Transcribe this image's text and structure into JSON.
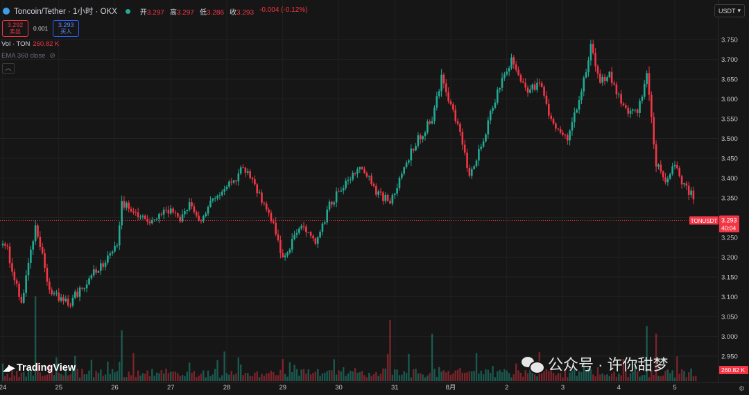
{
  "header": {
    "symbol_title": "Toncoin/Tether · 1小时 · OKX",
    "ohlc": [
      {
        "key": "开",
        "value": "3.297"
      },
      {
        "key": "高",
        "value": "3.297"
      },
      {
        "key": "低",
        "value": "3.286"
      },
      {
        "key": "收",
        "value": "3.293"
      }
    ],
    "change": "-0.004 (-0.12%)",
    "down_color": "#f23645",
    "up_color": "#22ab94"
  },
  "trade": {
    "sell_price": "3.292",
    "sell_label": "卖出",
    "spread": "0.001",
    "buy_price": "3.293",
    "buy_label": "买入"
  },
  "indicators": {
    "volume_label": "Vol · TON",
    "volume_value": "260.82 K",
    "ema_label": "EMA 360 close"
  },
  "currency_selector": {
    "label": "USDT"
  },
  "price_tag": {
    "symbol": "TONUSDT",
    "price": "3.293",
    "countdown": "40:04"
  },
  "volume_tag": "260.82 K",
  "branding": {
    "tradingview": "TradingView",
    "watermark": "公众号 · 许你甜梦"
  },
  "chart_data": {
    "type": "candlestick",
    "title": "Toncoin/Tether · 1小时 · OKX",
    "interval": "1h",
    "ylim": [
      2.95,
      3.775
    ],
    "y_ticks": [
      "2.950",
      "3.000",
      "3.050",
      "3.100",
      "3.150",
      "3.200",
      "3.250",
      "3.300",
      "3.350",
      "3.400",
      "3.450",
      "3.500",
      "3.550",
      "3.600",
      "3.650",
      "3.700",
      "3.750"
    ],
    "x_ticks": [
      "24",
      "25",
      "26",
      "27",
      "28",
      "29",
      "30",
      "31",
      "8月",
      "2",
      "3",
      "4",
      "5"
    ],
    "last_price": 3.293,
    "volume_unit": "K",
    "volume_max": 1000,
    "anchors": [
      {
        "t": "24 00:00",
        "price": 3.23
      },
      {
        "t": "24 01:00",
        "price": 3.24
      },
      {
        "t": "24 08:00",
        "price": 3.08
      },
      {
        "t": "24 14:00",
        "price": 3.28
      },
      {
        "t": "24 20:00",
        "price": 3.12
      },
      {
        "t": "25 04:00",
        "price": 3.08
      },
      {
        "t": "25 12:00",
        "price": 3.14
      },
      {
        "t": "25 20:00",
        "price": 3.19
      },
      {
        "t": "26 01:00",
        "price": 3.23
      },
      {
        "t": "26 03:00",
        "price": 3.34
      },
      {
        "t": "26 08:00",
        "price": 3.31
      },
      {
        "t": "26 14:00",
        "price": 3.29
      },
      {
        "t": "26 22:00",
        "price": 3.32
      },
      {
        "t": "27 04:00",
        "price": 3.3
      },
      {
        "t": "27 08:00",
        "price": 3.34
      },
      {
        "t": "27 12:00",
        "price": 3.29
      },
      {
        "t": "27 18:00",
        "price": 3.35
      },
      {
        "t": "28 04:00",
        "price": 3.4
      },
      {
        "t": "28 06:00",
        "price": 3.43
      },
      {
        "t": "28 10:00",
        "price": 3.41
      },
      {
        "t": "28 20:00",
        "price": 3.28
      },
      {
        "t": "29 00:00",
        "price": 3.2
      },
      {
        "t": "29 08:00",
        "price": 3.28
      },
      {
        "t": "29 14:00",
        "price": 3.23
      },
      {
        "t": "29 20:00",
        "price": 3.33
      },
      {
        "t": "30 04:00",
        "price": 3.4
      },
      {
        "t": "30 10:00",
        "price": 3.43
      },
      {
        "t": "30 16:00",
        "price": 3.36
      },
      {
        "t": "30 22:00",
        "price": 3.34
      },
      {
        "t": "31 04:00",
        "price": 3.43
      },
      {
        "t": "31 10:00",
        "price": 3.5
      },
      {
        "t": "31 16:00",
        "price": 3.55
      },
      {
        "t": "31 20:00",
        "price": 3.65
      },
      {
        "t": "8月 02:00",
        "price": 3.55
      },
      {
        "t": "8月 06:00",
        "price": 3.47
      },
      {
        "t": "8月 08:00",
        "price": 3.4
      },
      {
        "t": "8月 14:00",
        "price": 3.5
      },
      {
        "t": "8月 20:00",
        "price": 3.62
      },
      {
        "t": "2 02:00",
        "price": 3.7
      },
      {
        "t": "2 08:00",
        "price": 3.62
      },
      {
        "t": "2 14:00",
        "price": 3.64
      },
      {
        "t": "2 20:00",
        "price": 3.53
      },
      {
        "t": "3 02:00",
        "price": 3.5
      },
      {
        "t": "3 08:00",
        "price": 3.62
      },
      {
        "t": "3 12:00",
        "price": 3.73
      },
      {
        "t": "3 16:00",
        "price": 3.65
      },
      {
        "t": "3 20:00",
        "price": 3.66
      },
      {
        "t": "4 02:00",
        "price": 3.58
      },
      {
        "t": "4 08:00",
        "price": 3.56
      },
      {
        "t": "4 12:00",
        "price": 3.66
      },
      {
        "t": "4 16:00",
        "price": 3.44
      },
      {
        "t": "4 20:00",
        "price": 3.4
      },
      {
        "t": "5 00:00",
        "price": 3.43
      },
      {
        "t": "5 04:00",
        "price": 3.38
      },
      {
        "t": "5 08:00",
        "price": 3.35
      },
      {
        "t": "5 09:00",
        "price": 3.293
      }
    ],
    "volume_spikes": [
      {
        "t": "24 14:00",
        "value": 1000
      },
      {
        "t": "26 03:00",
        "value": 600
      },
      {
        "t": "30 22:00",
        "value": 720
      },
      {
        "t": "31 16:00",
        "value": 560
      },
      {
        "t": "8月 18:00",
        "value": 180
      },
      {
        "t": "4 12:00",
        "value": 650
      },
      {
        "t": "4 16:00",
        "value": 560
      }
    ]
  }
}
